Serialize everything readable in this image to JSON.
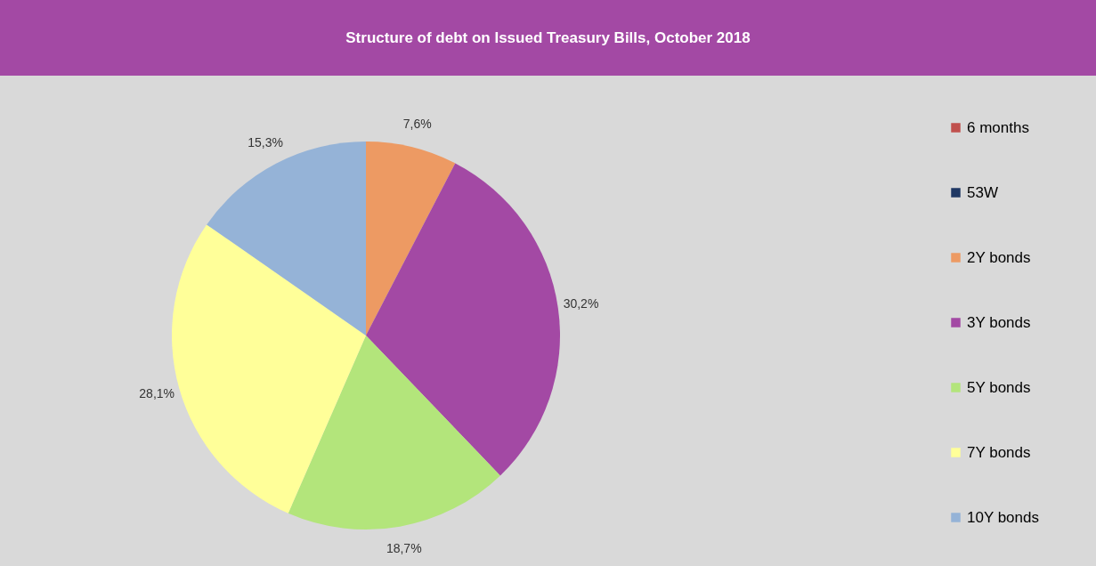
{
  "chart_data": {
    "type": "pie",
    "title": "Structure of debt on Issued Treasury Bills, October 2018",
    "categories": [
      "6 months",
      "53W",
      "2Y bonds",
      "3Y bonds",
      "5Y bonds",
      "7Y bonds",
      "10Y bonds"
    ],
    "values": [
      0,
      0,
      7.6,
      30.2,
      18.7,
      28.1,
      15.3
    ],
    "colors": [
      "#c0504d",
      "#1f3864",
      "#ed9a63",
      "#a349a4",
      "#b3e57b",
      "#ffff99",
      "#95b3d7"
    ],
    "value_labels": [
      null,
      null,
      "7,6%",
      "30,2%",
      "18,7%",
      "28,1%",
      "15,3%"
    ],
    "legend": "right"
  }
}
